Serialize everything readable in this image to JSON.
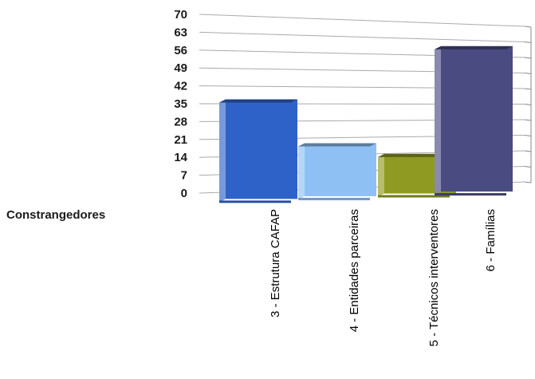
{
  "chart_data": {
    "type": "bar",
    "title": "",
    "xlabel": "Constrangedores",
    "ylabel": "",
    "ylim": [
      0,
      70
    ],
    "yticks": [
      0,
      7,
      14,
      21,
      28,
      35,
      42,
      49,
      56,
      63,
      70
    ],
    "grid": true,
    "legend": "none",
    "style": "3d-column",
    "categories": [
      "3 - Estrutura CAFAP",
      "4 - Entidades parceiras",
      "5 - Técnicos interventores",
      "6 - Famílias"
    ],
    "series": [
      {
        "values": [
          40,
          22,
          17,
          64
        ],
        "colors": [
          "#2f62c9",
          "#8ec0f3",
          "#8e9a22",
          "#4a4b80"
        ]
      }
    ]
  }
}
